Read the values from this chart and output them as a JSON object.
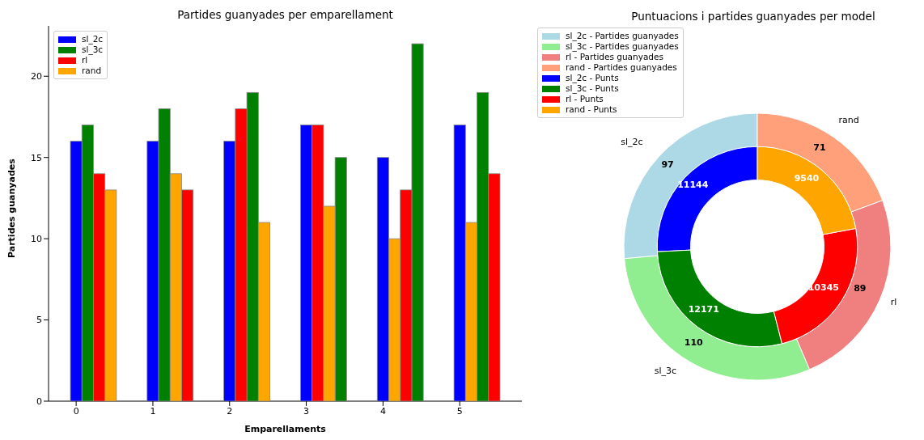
{
  "chart_data": [
    {
      "type": "bar",
      "title": "Partides guanyades per emparellament",
      "xlabel": "Emparellaments",
      "ylabel": "Partides guanyades",
      "xlim": [
        -0.36,
        5.81
      ],
      "xticks": [
        0,
        1,
        2,
        3,
        4,
        5
      ],
      "ylim": [
        0,
        23.1
      ],
      "yticks": [
        0,
        5,
        10,
        15,
        20
      ],
      "legend": "top left",
      "series": [
        {
          "name": "sl_2c",
          "color": "#0000ff",
          "x": [
            0,
            1,
            2,
            3,
            4,
            5
          ],
          "values": [
            16,
            16,
            16,
            17,
            15,
            17
          ]
        },
        {
          "name": "sl_3c",
          "color": "#008000",
          "x": [
            0.15,
            1.15,
            2.3,
            3.45,
            4.45,
            5.3
          ],
          "values": [
            17,
            18,
            19,
            15,
            22,
            19
          ]
        },
        {
          "name": "rl",
          "color": "#ff0000",
          "x": [
            0.3,
            1.45,
            2.15,
            3.15,
            4.3,
            5.45
          ],
          "values": [
            14,
            13,
            18,
            17,
            13,
            14
          ]
        },
        {
          "name": "rand",
          "color": "#ffa500",
          "x": [
            0.45,
            1.3,
            2.45,
            3.3,
            4.15,
            5.15
          ],
          "values": [
            13,
            14,
            11,
            12,
            10,
            11
          ]
        }
      ]
    },
    {
      "type": "donut",
      "title": "Puntuacions i partides guanyades per model",
      "categories": [
        "sl_2c",
        "sl_3c",
        "rl",
        "rand"
      ],
      "legend": "top left",
      "data_labels": true,
      "series": [
        {
          "name": "- Partides guanyades",
          "colors": [
            "#add8e6",
            "#90ee90",
            "#f08080",
            "#ffa07a"
          ],
          "values": [
            97,
            110,
            89,
            71
          ]
        },
        {
          "name": "- Punts",
          "colors": [
            "#0000ff",
            "#008000",
            "#ff0000",
            "#ffa500"
          ],
          "values": [
            11144,
            12171,
            10345,
            9540
          ]
        }
      ]
    }
  ]
}
